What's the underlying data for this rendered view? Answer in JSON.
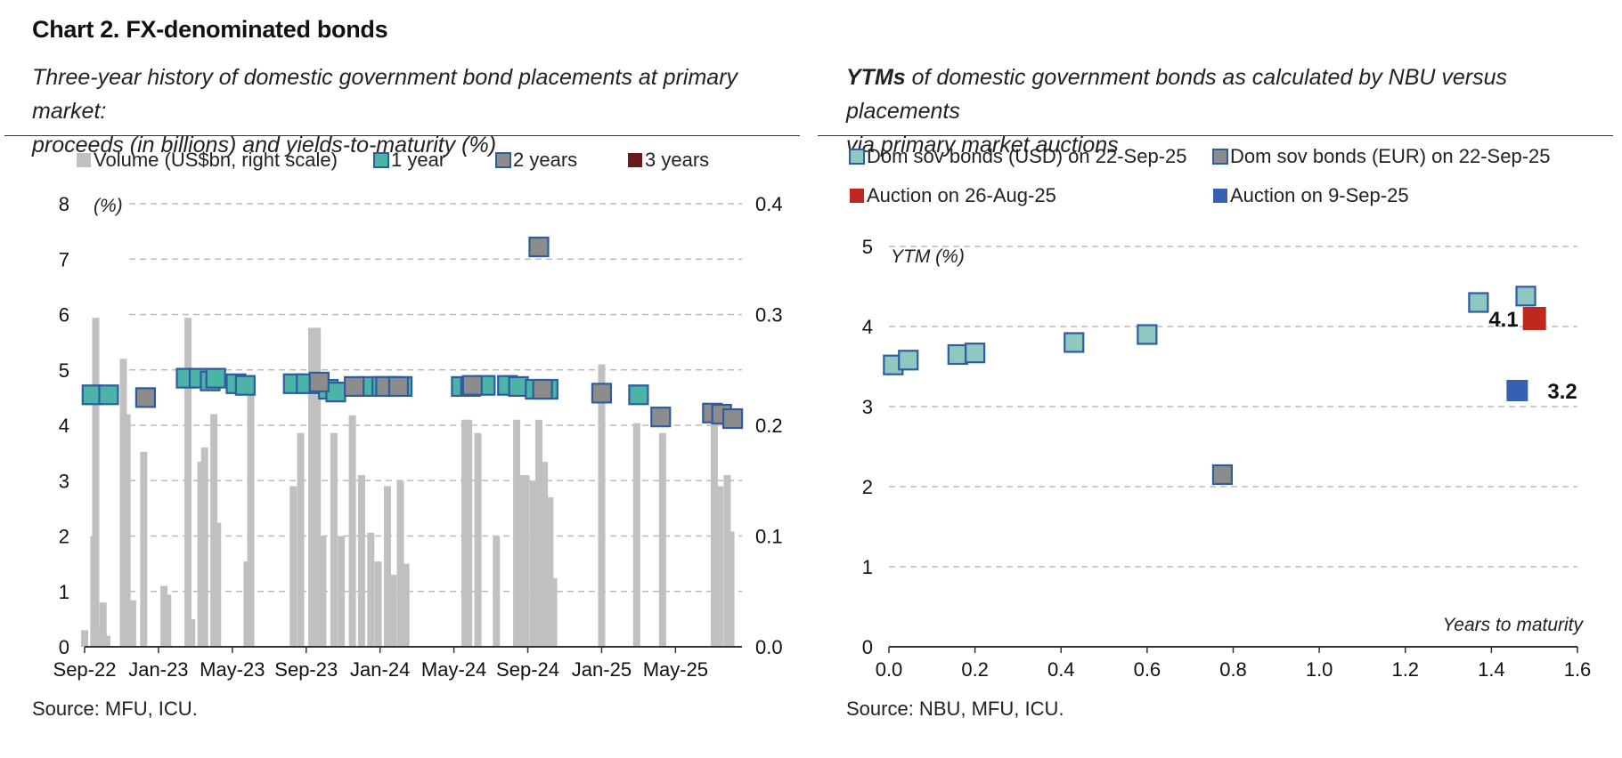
{
  "title": "Chart 2. FX-denominated bonds",
  "left": {
    "subtitle_line1": "Three-year history of domestic government bond placements at primary market:",
    "subtitle_line2": "proceeds (in billions) and yields-to-maturity (%)",
    "source": "Source: MFU, ICU."
  },
  "right": {
    "subtitle_emph": "YTMs",
    "subtitle_line1_rest": " of domestic government bonds as calculated by NBU versus placements",
    "subtitle_line2": "via primary market auctions",
    "source": "Source: NBU, MFU, ICU."
  },
  "colors": {
    "volume": "#c0c0c0",
    "one_year": "#4bb3a8",
    "two_years": "#8c8c8c",
    "three_years": "#6b1a1a",
    "marker_border": "#2e5c9e",
    "usd": "#8fc7c1",
    "eur": "#8c8c8c",
    "auction_aug": "#c0281f",
    "auction_sep": "#3461b0",
    "grid": "#bbbbbb"
  },
  "chart_data": [
    {
      "type": "bar",
      "legend": [
        "Volume (US$bn, right scale)",
        "1 year",
        "2 years",
        "3 years"
      ],
      "legend_position": "top",
      "y_left_label": "(%)",
      "y_left_ticks": [
        "0",
        "1",
        "2",
        "3",
        "4",
        "5",
        "6",
        "7",
        "8"
      ],
      "y_left_lim": [
        0,
        8
      ],
      "y_right_ticks": [
        "0.0",
        "0.1",
        "0.2",
        "0.3",
        "0.4"
      ],
      "y_right_lim": [
        0,
        0.4
      ],
      "x_ticks": [
        "Sep-22",
        "Jan-23",
        "May-23",
        "Sep-23",
        "Jan-24",
        "May-24",
        "Sep-24",
        "Jan-25",
        "May-25"
      ],
      "x_tick_months": [
        0,
        4,
        8,
        12,
        16,
        20,
        24,
        28,
        32
      ],
      "x_lim_months": [
        0,
        35.6
      ],
      "grid": true,
      "volume_bars": [
        {
          "m": 0.0,
          "v": 0.015
        },
        {
          "m": 0.5,
          "v": 0.1
        },
        {
          "m": 0.6,
          "v": 0.297
        },
        {
          "m": 0.85,
          "v": 0.018
        },
        {
          "m": 1.0,
          "v": 0.04
        },
        {
          "m": 1.2,
          "v": 0.01
        },
        {
          "m": 2.1,
          "v": 0.26
        },
        {
          "m": 2.3,
          "v": 0.21
        },
        {
          "m": 2.6,
          "v": 0.042
        },
        {
          "m": 3.2,
          "v": 0.176
        },
        {
          "m": 4.3,
          "v": 0.055
        },
        {
          "m": 4.5,
          "v": 0.047
        },
        {
          "m": 5.6,
          "v": 0.297
        },
        {
          "m": 5.8,
          "v": 0.025
        },
        {
          "m": 6.3,
          "v": 0.167
        },
        {
          "m": 6.5,
          "v": 0.18
        },
        {
          "m": 7.0,
          "v": 0.21
        },
        {
          "m": 7.2,
          "v": 0.112
        },
        {
          "m": 8.8,
          "v": 0.077
        },
        {
          "m": 9.0,
          "v": 0.23
        },
        {
          "m": 11.3,
          "v": 0.145
        },
        {
          "m": 11.7,
          "v": 0.193
        },
        {
          "m": 12.3,
          "v": 0.288
        },
        {
          "m": 12.6,
          "v": 0.288
        },
        {
          "m": 12.9,
          "v": 0.1
        },
        {
          "m": 13.5,
          "v": 0.193
        },
        {
          "m": 13.9,
          "v": 0.1
        },
        {
          "m": 14.5,
          "v": 0.209
        },
        {
          "m": 15.0,
          "v": 0.155
        },
        {
          "m": 15.5,
          "v": 0.103
        },
        {
          "m": 15.9,
          "v": 0.077
        },
        {
          "m": 16.4,
          "v": 0.145
        },
        {
          "m": 16.7,
          "v": 0.065
        },
        {
          "m": 17.1,
          "v": 0.15
        },
        {
          "m": 17.4,
          "v": 0.075
        },
        {
          "m": 20.6,
          "v": 0.205
        },
        {
          "m": 20.8,
          "v": 0.205
        },
        {
          "m": 21.3,
          "v": 0.193
        },
        {
          "m": 22.3,
          "v": 0.1
        },
        {
          "m": 23.4,
          "v": 0.205
        },
        {
          "m": 23.6,
          "v": 0.155
        },
        {
          "m": 23.9,
          "v": 0.155
        },
        {
          "m": 24.3,
          "v": 0.15
        },
        {
          "m": 24.6,
          "v": 0.205
        },
        {
          "m": 24.9,
          "v": 0.167
        },
        {
          "m": 25.2,
          "v": 0.135
        },
        {
          "m": 25.4,
          "v": 0.062
        },
        {
          "m": 28.0,
          "v": 0.255
        },
        {
          "m": 29.9,
          "v": 0.202
        },
        {
          "m": 31.3,
          "v": 0.193
        },
        {
          "m": 34.1,
          "v": 0.205
        },
        {
          "m": 34.4,
          "v": 0.145
        },
        {
          "m": 34.8,
          "v": 0.155
        },
        {
          "m": 35.0,
          "v": 0.104
        }
      ],
      "series": [
        {
          "name": "1 year",
          "points": [
            {
              "m": 0.4,
              "y": 4.55
            },
            {
              "m": 1.3,
              "y": 4.55
            },
            {
              "m": 5.5,
              "y": 4.85
            },
            {
              "m": 6.2,
              "y": 4.85
            },
            {
              "m": 6.8,
              "y": 4.8
            },
            {
              "m": 7.1,
              "y": 4.85
            },
            {
              "m": 8.2,
              "y": 4.75
            },
            {
              "m": 8.7,
              "y": 4.72
            },
            {
              "m": 11.3,
              "y": 4.75
            },
            {
              "m": 12.0,
              "y": 4.75
            },
            {
              "m": 12.7,
              "y": 4.75
            },
            {
              "m": 13.2,
              "y": 4.65
            },
            {
              "m": 13.6,
              "y": 4.6
            },
            {
              "m": 15.4,
              "y": 4.7
            },
            {
              "m": 16.1,
              "y": 4.7
            },
            {
              "m": 16.6,
              "y": 4.7
            },
            {
              "m": 17.2,
              "y": 4.7
            },
            {
              "m": 20.4,
              "y": 4.7
            },
            {
              "m": 20.9,
              "y": 4.7
            },
            {
              "m": 21.7,
              "y": 4.72
            },
            {
              "m": 22.9,
              "y": 4.72
            },
            {
              "m": 23.5,
              "y": 4.7
            },
            {
              "m": 24.4,
              "y": 4.65
            },
            {
              "m": 25.1,
              "y": 4.65
            },
            {
              "m": 30.0,
              "y": 4.55
            }
          ]
        },
        {
          "name": "2 years",
          "points": [
            {
              "m": 3.3,
              "y": 4.5
            },
            {
              "m": 12.7,
              "y": 4.78
            },
            {
              "m": 14.6,
              "y": 4.7
            },
            {
              "m": 16.3,
              "y": 4.7
            },
            {
              "m": 17.0,
              "y": 4.7
            },
            {
              "m": 21.0,
              "y": 4.72
            },
            {
              "m": 24.6,
              "y": 7.22
            },
            {
              "m": 24.8,
              "y": 4.65
            },
            {
              "m": 28.0,
              "y": 4.58
            },
            {
              "m": 31.2,
              "y": 4.15
            },
            {
              "m": 34.0,
              "y": 4.22
            },
            {
              "m": 34.5,
              "y": 4.2
            },
            {
              "m": 35.1,
              "y": 4.12
            }
          ]
        },
        {
          "name": "3 years",
          "points": []
        }
      ]
    },
    {
      "type": "scatter",
      "legend": [
        "Dom sov bonds (USD) on 22-Sep-25",
        "Dom sov bonds (EUR) on 22-Sep-25",
        "Auction on 26-Aug-25",
        "Auction on 9-Sep-25"
      ],
      "legend_position": "top",
      "y_label": "YTM (%)",
      "x_label": "Years to maturity",
      "y_ticks": [
        "0",
        "1",
        "2",
        "3",
        "4",
        "5"
      ],
      "y_lim": [
        0,
        5
      ],
      "x_ticks": [
        "0.0",
        "0.2",
        "0.4",
        "0.6",
        "0.8",
        "1.0",
        "1.2",
        "1.4",
        "1.6"
      ],
      "x_lim": [
        0,
        1.6
      ],
      "grid": true,
      "series": [
        {
          "name": "Dom sov bonds (USD) on 22-Sep-25",
          "points": [
            {
              "x": 0.01,
              "y": 3.52
            },
            {
              "x": 0.045,
              "y": 3.58
            },
            {
              "x": 0.16,
              "y": 3.65
            },
            {
              "x": 0.2,
              "y": 3.67
            },
            {
              "x": 0.43,
              "y": 3.8
            },
            {
              "x": 0.6,
              "y": 3.9
            },
            {
              "x": 1.37,
              "y": 4.3
            },
            {
              "x": 1.48,
              "y": 4.38
            }
          ]
        },
        {
          "name": "Dom sov bonds (EUR) on 22-Sep-25",
          "points": [
            {
              "x": 0.775,
              "y": 2.15
            }
          ]
        },
        {
          "name": "Auction on 26-Aug-25",
          "points": [
            {
              "x": 1.5,
              "y": 4.1
            }
          ],
          "label": "4.1"
        },
        {
          "name": "Auction on 9-Sep-25",
          "points": [
            {
              "x": 1.46,
              "y": 3.2
            }
          ],
          "label": "3.2"
        }
      ]
    }
  ]
}
